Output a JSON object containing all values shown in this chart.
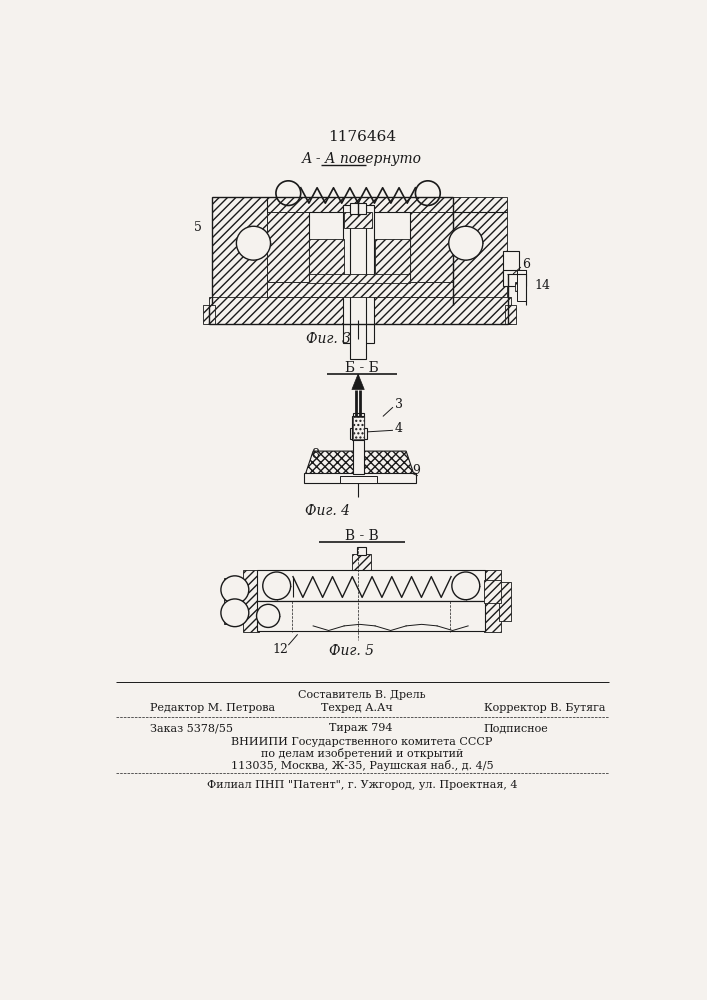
{
  "patent_number": "1176464",
  "fig3_label": "А - А повернуто",
  "fig3_caption": "Фиг. 3",
  "fig4_section": "Б - Б",
  "fig4_caption": "Фиг. 4",
  "fig5_section": "В - В",
  "fig5_caption": "Фиг. 5",
  "footer_line1": "Составитель В. Дрель",
  "footer_line2_left": "Редактор М. Петрова",
  "footer_line2_mid": "Техред А.Ач",
  "footer_line2_right": "Корректор В. Бутяга",
  "footer_line3_left": "Заказ 5378/55",
  "footer_line3_mid": "Тираж 794",
  "footer_line3_right": "Подписное",
  "footer_vniipi1": "ВНИИПИ Государственного комитета СССР",
  "footer_vniipi2": "по делам изобретений и открытий",
  "footer_vniipi3": "113035, Москва, Ж-35, Раушская наб., д. 4/5",
  "footer_filial": "Филиал ПНП \"Патент\", г. Ужгород, ул. Проектная, 4",
  "bg_color": "#f5f2ee",
  "line_color": "#1a1a1a"
}
